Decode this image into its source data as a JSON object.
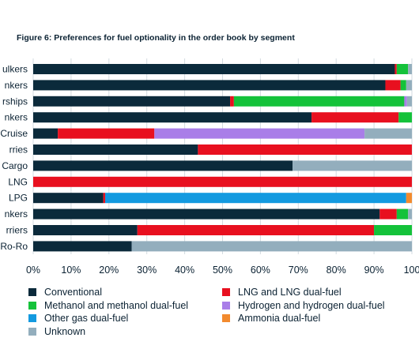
{
  "chart_data": {
    "type": "bar",
    "orientation": "horizontal",
    "stacked": true,
    "title": "Figure 6: Preferences for fuel optionality in the order book by segment",
    "categories": [
      "ulkers",
      "nkers",
      "rships",
      "nkers",
      "Cruise",
      "rries",
      "Cargo",
      "LNG",
      "LPG",
      "nkers",
      "rriers",
      "Ro-Ro"
    ],
    "xlim": [
      0,
      100
    ],
    "xticks": [
      "0%",
      "10%",
      "20%",
      "30%",
      "40%",
      "50%",
      "60%",
      "70%",
      "80%",
      "90%",
      "100"
    ],
    "grid": true,
    "legend_position": "bottom",
    "series": [
      {
        "name": "Conventional",
        "color": "#0b2a3b",
        "values": [
          95.5,
          93,
          52,
          73.5,
          6.5,
          43.5,
          68.5,
          0,
          18.5,
          91.5,
          27.5,
          26
        ]
      },
      {
        "name": "LNG and LNG dual-fuel",
        "color": "#e8101f",
        "values": [
          0.5,
          4,
          1,
          23,
          25.5,
          56.5,
          0,
          100,
          0.5,
          4.5,
          62.5,
          0
        ]
      },
      {
        "name": "Methanol and methanol dual-fuel",
        "color": "#14c23a",
        "values": [
          3,
          1.5,
          45,
          3.5,
          0,
          0,
          0,
          0,
          0,
          3,
          10,
          0
        ]
      },
      {
        "name": "Hydrogen and hydrogen dual-fuel",
        "color": "#a97ee8",
        "values": [
          0,
          0,
          0.7,
          0,
          55.5,
          0,
          0,
          0,
          0,
          0,
          0,
          0
        ]
      },
      {
        "name": "Other gas dual-fuel",
        "color": "#139ae0",
        "values": [
          0,
          0,
          0,
          0,
          0,
          0,
          0,
          0,
          79.5,
          0,
          0,
          0
        ]
      },
      {
        "name": "Ammonia dual-fuel",
        "color": "#f28a2e",
        "values": [
          0,
          0,
          0,
          0,
          0,
          0,
          0,
          0,
          1.5,
          0,
          0,
          0
        ]
      },
      {
        "name": "Unknown",
        "color": "#93aebd",
        "values": [
          1,
          1.5,
          1.3,
          0,
          12.5,
          0,
          31.5,
          0,
          0,
          1,
          0,
          74
        ]
      }
    ]
  },
  "legend": [
    {
      "label": "Conventional",
      "color": "#0b2a3b"
    },
    {
      "label": "LNG and LNG dual-fuel",
      "color": "#e8101f"
    },
    {
      "label": "Methanol and methanol dual-fuel",
      "color": "#14c23a"
    },
    {
      "label": "Hydrogen and hydrogen dual-fuel",
      "color": "#a97ee8"
    },
    {
      "label": "Other gas dual-fuel",
      "color": "#139ae0"
    },
    {
      "label": "Ammonia dual-fuel",
      "color": "#f28a2e"
    },
    {
      "label": "Unknown",
      "color": "#93aebd"
    }
  ]
}
